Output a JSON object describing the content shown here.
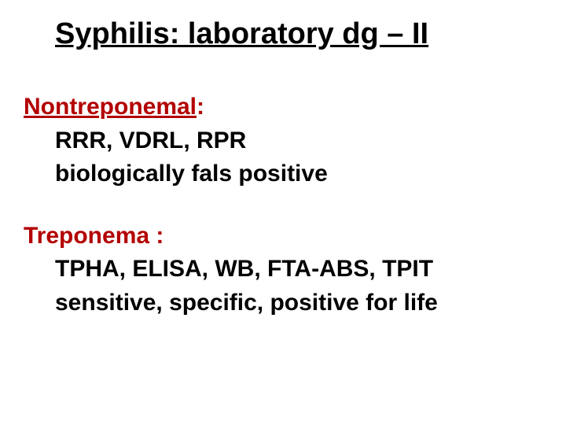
{
  "title": "Syphilis: laboratory dg – II",
  "block1": {
    "heading_term": "Nontreponemal",
    "heading_suffix": ":",
    "line1": "RRR, VDRL, RPR",
    "line2": "biologically fals positive"
  },
  "block2": {
    "heading": "Treponema :",
    "line1": "TPHA, ELISA, WB, FTA-ABS, TPIT",
    "line2": "sensitive, specific, positive for life"
  },
  "colors": {
    "heading_color": "#b30000",
    "text_color": "#000000",
    "background": "#ffffff"
  },
  "typography": {
    "title_fontsize": 38,
    "body_fontsize": 30,
    "font_family": "Arial",
    "font_weight": "bold"
  }
}
